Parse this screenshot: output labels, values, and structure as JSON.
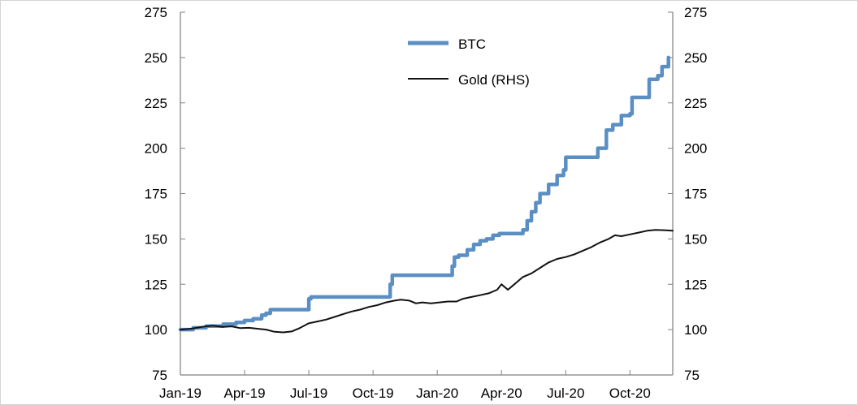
{
  "chart_data": {
    "type": "line",
    "title": "",
    "xlabel": "",
    "ylabel": "",
    "x_ticks": [
      "Jan-19",
      "Apr-19",
      "Jul-19",
      "Oct-19",
      "Jan-20",
      "Apr-20",
      "Jul-20",
      "Oct-20"
    ],
    "y_ticks_left": [
      "75",
      "100",
      "125",
      "150",
      "175",
      "200",
      "225",
      "250",
      "275"
    ],
    "y_ticks_right": [
      "75",
      "100",
      "125",
      "150",
      "175",
      "200",
      "225",
      "250",
      "275"
    ],
    "ylim": [
      75,
      275
    ],
    "xlim_months": [
      0,
      23
    ],
    "grid": false,
    "legend_position": "top-center",
    "series": [
      {
        "name": "BTC",
        "color": "#5b8fc3",
        "axis": "left",
        "step": true,
        "points": [
          [
            0,
            100
          ],
          [
            0.6,
            101
          ],
          [
            1.2,
            102
          ],
          [
            2,
            103
          ],
          [
            2.6,
            104
          ],
          [
            3,
            105
          ],
          [
            3.4,
            106
          ],
          [
            3.8,
            108
          ],
          [
            4,
            109
          ],
          [
            4.2,
            111
          ],
          [
            5.9,
            111
          ],
          [
            6.0,
            117
          ],
          [
            6.1,
            118
          ],
          [
            9.7,
            118
          ],
          [
            9.8,
            125
          ],
          [
            9.9,
            130
          ],
          [
            12.6,
            130
          ],
          [
            12.7,
            135
          ],
          [
            12.8,
            140
          ],
          [
            13.0,
            141
          ],
          [
            13.4,
            144
          ],
          [
            13.7,
            147
          ],
          [
            14.0,
            149
          ],
          [
            14.3,
            150
          ],
          [
            14.6,
            152
          ],
          [
            14.9,
            153
          ],
          [
            15.6,
            153
          ],
          [
            16.0,
            155
          ],
          [
            16.2,
            160
          ],
          [
            16.4,
            165
          ],
          [
            16.6,
            170
          ],
          [
            16.8,
            175
          ],
          [
            17.2,
            180
          ],
          [
            17.6,
            185
          ],
          [
            17.9,
            188
          ],
          [
            18.0,
            195
          ],
          [
            19.1,
            195
          ],
          [
            19.5,
            200
          ],
          [
            19.9,
            210
          ],
          [
            20.2,
            213
          ],
          [
            20.6,
            218
          ],
          [
            21.0,
            219
          ],
          [
            21.1,
            228
          ],
          [
            21.8,
            228
          ],
          [
            21.9,
            238
          ],
          [
            22.3,
            240
          ],
          [
            22.5,
            245
          ],
          [
            22.8,
            250
          ]
        ]
      },
      {
        "name": "Gold (RHS)",
        "color": "#111111",
        "axis": "right",
        "step": false,
        "points": [
          [
            0,
            100
          ],
          [
            0.5,
            100.5
          ],
          [
            1,
            101.5
          ],
          [
            1.5,
            102.2
          ],
          [
            2,
            101.5
          ],
          [
            2.4,
            101.8
          ],
          [
            2.8,
            100.8
          ],
          [
            3.2,
            101
          ],
          [
            3.6,
            100.5
          ],
          [
            4,
            100
          ],
          [
            4.4,
            98.8
          ],
          [
            4.8,
            98.5
          ],
          [
            5.2,
            99
          ],
          [
            5.6,
            101
          ],
          [
            6.0,
            103.5
          ],
          [
            6.4,
            104.5
          ],
          [
            6.8,
            105.5
          ],
          [
            7.2,
            107
          ],
          [
            7.6,
            108.5
          ],
          [
            8.0,
            110
          ],
          [
            8.4,
            111
          ],
          [
            8.8,
            112.5
          ],
          [
            9.2,
            113.5
          ],
          [
            9.6,
            115
          ],
          [
            10.0,
            116
          ],
          [
            10.3,
            116.5
          ],
          [
            10.7,
            116
          ],
          [
            11.0,
            114.5
          ],
          [
            11.3,
            115
          ],
          [
            11.7,
            114.5
          ],
          [
            12.1,
            115
          ],
          [
            12.5,
            115.5
          ],
          [
            12.9,
            115.5
          ],
          [
            13.2,
            117
          ],
          [
            13.6,
            118
          ],
          [
            14.0,
            119
          ],
          [
            14.4,
            120
          ],
          [
            14.8,
            122
          ],
          [
            15.0,
            125
          ],
          [
            15.3,
            122
          ],
          [
            15.6,
            125
          ],
          [
            16.0,
            129
          ],
          [
            16.4,
            131
          ],
          [
            16.8,
            134
          ],
          [
            17.2,
            137
          ],
          [
            17.6,
            139
          ],
          [
            18.0,
            140
          ],
          [
            18.4,
            141.5
          ],
          [
            18.8,
            143.5
          ],
          [
            19.2,
            145.5
          ],
          [
            19.6,
            148
          ],
          [
            20.0,
            150
          ],
          [
            20.3,
            152
          ],
          [
            20.6,
            151.5
          ],
          [
            21.0,
            152.5
          ],
          [
            21.4,
            153.5
          ],
          [
            21.8,
            154.5
          ],
          [
            22.2,
            155
          ],
          [
            22.6,
            154.8
          ],
          [
            23.0,
            154.5
          ]
        ]
      }
    ]
  }
}
